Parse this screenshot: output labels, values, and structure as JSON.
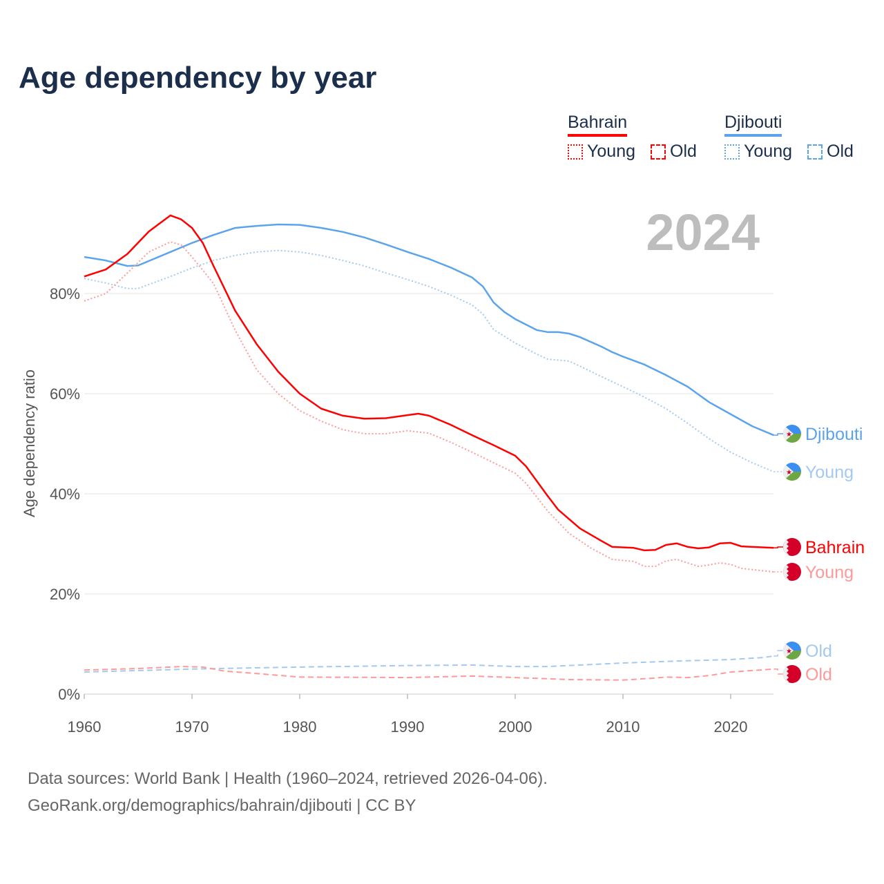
{
  "title": "Age dependency by year",
  "legend": {
    "groups": [
      {
        "name": "Bahrain",
        "color": "#ff0000",
        "items": [
          "Young",
          "Old"
        ]
      },
      {
        "name": "Djibouti",
        "color": "#5ba4ec",
        "items": [
          "Young",
          "Old"
        ]
      }
    ]
  },
  "source": {
    "line1": "Data sources: World Bank | Health (1960–2024, retrieved 2026-04-06).",
    "line2": "GeoRank.org/demographics/bahrain/djibouti | CC BY"
  },
  "chart_data": {
    "type": "line",
    "title": "Age dependency by year",
    "year_label": "2024",
    "xlabel": "",
    "ylabel": "Age dependency ratio",
    "xlim": [
      1960,
      2024
    ],
    "ylim": [
      0,
      100
    ],
    "xticks": [
      1960,
      1970,
      1980,
      1990,
      2000,
      2010,
      2020
    ],
    "yticks": [
      {
        "v": 0,
        "label": "0%"
      },
      {
        "v": 20,
        "label": "20%"
      },
      {
        "v": 40,
        "label": "40%"
      },
      {
        "v": 60,
        "label": "60%"
      },
      {
        "v": 80,
        "label": "80%"
      }
    ],
    "grid": true,
    "series": [
      {
        "name": "Djibouti",
        "country": "Djibouti",
        "kind": "total",
        "color": "#5ba4ec",
        "end_label": "Djibouti",
        "points": [
          [
            1960,
            87.3
          ],
          [
            1962,
            86.6
          ],
          [
            1964,
            85.5
          ],
          [
            1965,
            85.6
          ],
          [
            1966,
            86.5
          ],
          [
            1968,
            88.3
          ],
          [
            1970,
            90.1
          ],
          [
            1972,
            91.7
          ],
          [
            1974,
            93.1
          ],
          [
            1976,
            93.5
          ],
          [
            1978,
            93.8
          ],
          [
            1980,
            93.7
          ],
          [
            1982,
            93.1
          ],
          [
            1984,
            92.3
          ],
          [
            1986,
            91.2
          ],
          [
            1988,
            89.8
          ],
          [
            1990,
            88.3
          ],
          [
            1992,
            86.9
          ],
          [
            1994,
            85.2
          ],
          [
            1996,
            83.2
          ],
          [
            1997,
            81.4
          ],
          [
            1998,
            78.2
          ],
          [
            1999,
            76.3
          ],
          [
            2000,
            74.9
          ],
          [
            2002,
            72.7
          ],
          [
            2003,
            72.3
          ],
          [
            2004,
            72.3
          ],
          [
            2005,
            72.0
          ],
          [
            2006,
            71.3
          ],
          [
            2008,
            69.4
          ],
          [
            2009,
            68.3
          ],
          [
            2010,
            67.4
          ],
          [
            2012,
            65.8
          ],
          [
            2014,
            63.7
          ],
          [
            2016,
            61.4
          ],
          [
            2018,
            58.3
          ],
          [
            2020,
            55.9
          ],
          [
            2022,
            53.5
          ],
          [
            2024,
            51.7
          ]
        ]
      },
      {
        "name": "Djibouti Young",
        "country": "Djibouti",
        "kind": "young",
        "color": "#a3c9f1",
        "end_label": "Young",
        "points": [
          [
            1960,
            83.0
          ],
          [
            1962,
            82.1
          ],
          [
            1964,
            81.0
          ],
          [
            1965,
            81.0
          ],
          [
            1966,
            81.8
          ],
          [
            1968,
            83.4
          ],
          [
            1970,
            85.1
          ],
          [
            1972,
            86.6
          ],
          [
            1974,
            87.6
          ],
          [
            1976,
            88.3
          ],
          [
            1978,
            88.6
          ],
          [
            1980,
            88.3
          ],
          [
            1982,
            87.6
          ],
          [
            1984,
            86.6
          ],
          [
            1986,
            85.5
          ],
          [
            1988,
            84.1
          ],
          [
            1990,
            82.8
          ],
          [
            1992,
            81.4
          ],
          [
            1994,
            79.7
          ],
          [
            1996,
            77.7
          ],
          [
            1997,
            75.9
          ],
          [
            1998,
            72.8
          ],
          [
            2000,
            70.1
          ],
          [
            2002,
            67.9
          ],
          [
            2003,
            66.9
          ],
          [
            2005,
            66.5
          ],
          [
            2006,
            65.5
          ],
          [
            2008,
            63.4
          ],
          [
            2010,
            61.4
          ],
          [
            2012,
            59.3
          ],
          [
            2014,
            57.0
          ],
          [
            2016,
            54.1
          ],
          [
            2018,
            51.0
          ],
          [
            2020,
            48.3
          ],
          [
            2022,
            46.2
          ],
          [
            2024,
            44.4
          ]
        ]
      },
      {
        "name": "Djibouti Old",
        "country": "Djibouti",
        "kind": "old",
        "color": "#a3c9f1",
        "end_label": "Old",
        "points": [
          [
            1960,
            4.4
          ],
          [
            1970,
            5.0
          ],
          [
            1980,
            5.4
          ],
          [
            1990,
            5.7
          ],
          [
            1996,
            5.8
          ],
          [
            2000,
            5.5
          ],
          [
            2003,
            5.5
          ],
          [
            2010,
            6.2
          ],
          [
            2015,
            6.6
          ],
          [
            2020,
            6.9
          ],
          [
            2023,
            7.3
          ],
          [
            2024,
            7.6
          ]
        ]
      },
      {
        "name": "Bahrain",
        "country": "Bahrain",
        "kind": "total",
        "color": "#ff0000",
        "end_label": "Bahrain",
        "points": [
          [
            1960,
            83.4
          ],
          [
            1962,
            84.8
          ],
          [
            1964,
            87.9
          ],
          [
            1966,
            92.4
          ],
          [
            1968,
            95.6
          ],
          [
            1969,
            94.8
          ],
          [
            1970,
            93.1
          ],
          [
            1971,
            90.1
          ],
          [
            1972,
            85.5
          ],
          [
            1974,
            76.6
          ],
          [
            1976,
            69.9
          ],
          [
            1978,
            64.4
          ],
          [
            1980,
            60.0
          ],
          [
            1982,
            57.0
          ],
          [
            1984,
            55.6
          ],
          [
            1986,
            55.0
          ],
          [
            1988,
            55.1
          ],
          [
            1990,
            55.7
          ],
          [
            1991,
            56.0
          ],
          [
            1992,
            55.6
          ],
          [
            1994,
            53.8
          ],
          [
            1996,
            51.7
          ],
          [
            1998,
            49.7
          ],
          [
            2000,
            47.6
          ],
          [
            2001,
            45.5
          ],
          [
            2003,
            39.6
          ],
          [
            2004,
            36.8
          ],
          [
            2006,
            33.1
          ],
          [
            2008,
            30.6
          ],
          [
            2009,
            29.4
          ],
          [
            2011,
            29.2
          ],
          [
            2012,
            28.7
          ],
          [
            2013,
            28.8
          ],
          [
            2014,
            29.8
          ],
          [
            2015,
            30.1
          ],
          [
            2016,
            29.4
          ],
          [
            2017,
            29.1
          ],
          [
            2018,
            29.3
          ],
          [
            2019,
            30.1
          ],
          [
            2020,
            30.2
          ],
          [
            2021,
            29.5
          ],
          [
            2022,
            29.4
          ],
          [
            2024,
            29.2
          ]
        ]
      },
      {
        "name": "Bahrain Young",
        "country": "Bahrain",
        "kind": "young",
        "color": "#ff9999",
        "end_label": "Young",
        "points": [
          [
            1960,
            78.5
          ],
          [
            1962,
            80.0
          ],
          [
            1964,
            84.1
          ],
          [
            1966,
            88.3
          ],
          [
            1968,
            90.3
          ],
          [
            1969,
            89.7
          ],
          [
            1970,
            87.3
          ],
          [
            1972,
            82.0
          ],
          [
            1974,
            72.7
          ],
          [
            1976,
            64.8
          ],
          [
            1978,
            60.0
          ],
          [
            1980,
            56.6
          ],
          [
            1982,
            54.5
          ],
          [
            1984,
            52.8
          ],
          [
            1986,
            52.0
          ],
          [
            1988,
            52.0
          ],
          [
            1990,
            52.6
          ],
          [
            1992,
            52.1
          ],
          [
            1994,
            50.3
          ],
          [
            1996,
            48.3
          ],
          [
            1998,
            46.2
          ],
          [
            2000,
            44.1
          ],
          [
            2001,
            42.1
          ],
          [
            2003,
            36.6
          ],
          [
            2005,
            32.1
          ],
          [
            2007,
            29.2
          ],
          [
            2009,
            26.9
          ],
          [
            2011,
            26.5
          ],
          [
            2012,
            25.5
          ],
          [
            2013,
            25.5
          ],
          [
            2014,
            26.6
          ],
          [
            2015,
            26.9
          ],
          [
            2017,
            25.5
          ],
          [
            2018,
            25.8
          ],
          [
            2019,
            26.2
          ],
          [
            2020,
            25.9
          ],
          [
            2021,
            25.1
          ],
          [
            2024,
            24.4
          ]
        ]
      },
      {
        "name": "Bahrain Old",
        "country": "Bahrain",
        "kind": "old",
        "color": "#ff9999",
        "end_label": "Old",
        "points": [
          [
            1960,
            4.8
          ],
          [
            1965,
            5.1
          ],
          [
            1969,
            5.5
          ],
          [
            1971,
            5.4
          ],
          [
            1973,
            4.6
          ],
          [
            1976,
            4.1
          ],
          [
            1980,
            3.4
          ],
          [
            1990,
            3.3
          ],
          [
            1996,
            3.6
          ],
          [
            2000,
            3.3
          ],
          [
            2005,
            2.9
          ],
          [
            2010,
            2.8
          ],
          [
            2013,
            3.2
          ],
          [
            2014,
            3.4
          ],
          [
            2016,
            3.3
          ],
          [
            2018,
            3.7
          ],
          [
            2020,
            4.4
          ],
          [
            2022,
            4.7
          ],
          [
            2024,
            5.0
          ]
        ]
      }
    ]
  }
}
